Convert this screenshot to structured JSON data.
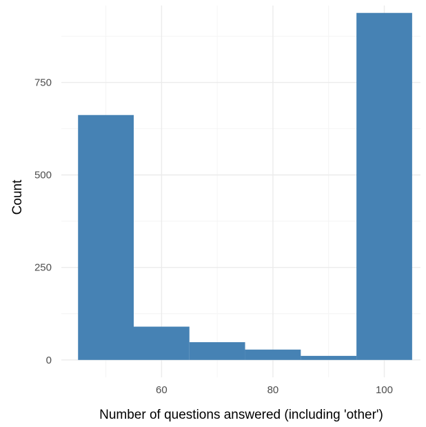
{
  "chart_data": {
    "type": "bar",
    "title": "",
    "xlabel": "Number of questions answered (including 'other')",
    "ylabel": "Count",
    "bins": [
      {
        "x_start": 45,
        "x_end": 55,
        "count": 662
      },
      {
        "x_start": 55,
        "x_end": 65,
        "count": 90
      },
      {
        "x_start": 65,
        "x_end": 75,
        "count": 48
      },
      {
        "x_start": 75,
        "x_end": 85,
        "count": 28
      },
      {
        "x_start": 85,
        "x_end": 95,
        "count": 11
      },
      {
        "x_start": 95,
        "x_end": 105,
        "count": 938
      }
    ],
    "xlim": [
      42,
      106.5
    ],
    "ylim": [
      -47,
      958
    ],
    "x_ticks": [
      60,
      80,
      100
    ],
    "x_tick_labels": [
      "60",
      "80",
      "100"
    ],
    "y_ticks": [
      0,
      250,
      500,
      750
    ],
    "y_tick_labels": [
      "0",
      "250",
      "500",
      "750"
    ],
    "grid": true,
    "legend": "none",
    "colors": {
      "bar_fill": "#4682b4",
      "grid_major": "#ebebeb",
      "grid_minor": "#f4f4f4",
      "tick_text": "#4d4d4d",
      "axis_title": "#000000"
    }
  }
}
